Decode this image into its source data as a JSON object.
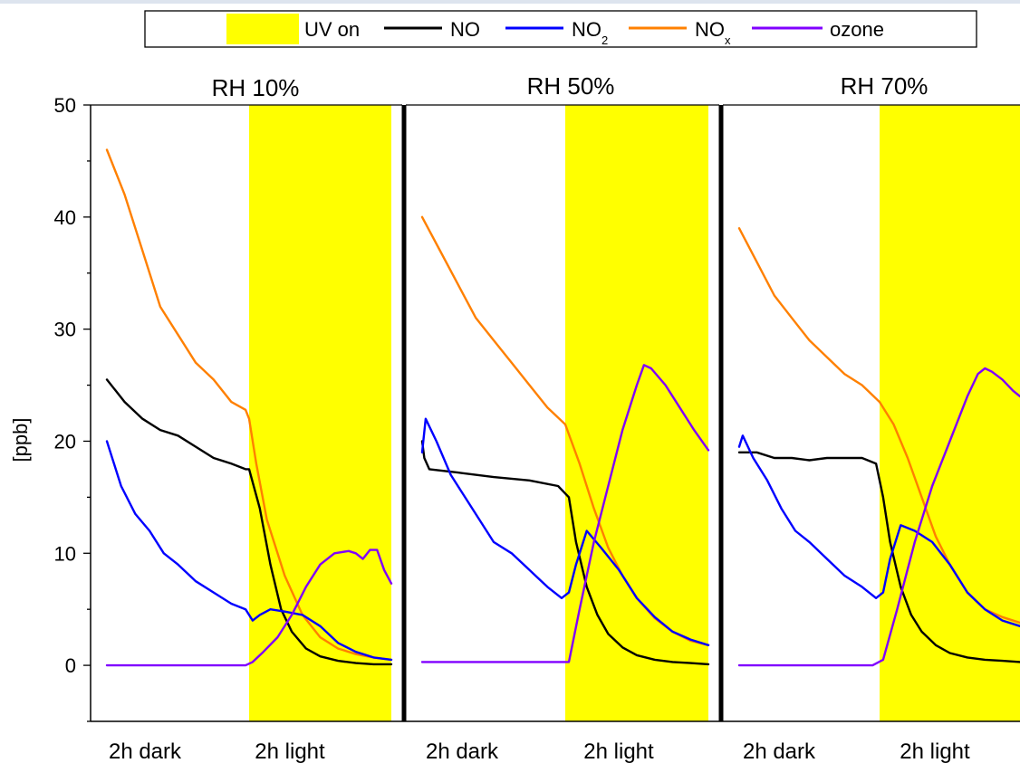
{
  "chart_data": {
    "type": "line",
    "ylabel": "[ppb]",
    "ylim": [
      -5,
      50
    ],
    "y_ticks": [
      0,
      10,
      20,
      30,
      40,
      50
    ],
    "grid": false,
    "legend_position": "top-center",
    "legend": [
      {
        "key": "uv",
        "label": "UV on",
        "kind": "patch",
        "color": "#ffff00"
      },
      {
        "key": "no",
        "label": "NO",
        "kind": "line",
        "color": "#000000"
      },
      {
        "key": "no2",
        "label": "NO",
        "sub": "2",
        "kind": "line",
        "color": "#0000ff"
      },
      {
        "key": "nox",
        "label": "NO",
        "sub": "x",
        "kind": "line",
        "color": "#ff8000"
      },
      {
        "key": "ozone",
        "label": "ozone",
        "kind": "line",
        "color": "#8000ff"
      }
    ],
    "x_unit": "h",
    "panels": [
      {
        "title": "RH 10%",
        "x_labels": [
          "2h dark",
          "2h light"
        ],
        "uv_on": [
          2,
          4
        ],
        "series": {
          "nox": {
            "x": [
              0.0,
              0.25,
              0.5,
              0.75,
              1.0,
              1.25,
              1.5,
              1.75,
              1.95,
              2.0,
              2.1,
              2.25,
              2.5,
              2.75,
              3.0,
              3.25,
              3.5,
              3.75,
              4.0
            ],
            "y": [
              46,
              42,
              37,
              32,
              29.5,
              27,
              25.5,
              23.5,
              22.8,
              22,
              18,
              13,
              8,
              4.5,
              2.5,
              1.5,
              1,
              0.7,
              0.5
            ]
          },
          "no": {
            "x": [
              0.0,
              0.25,
              0.5,
              0.75,
              1.0,
              1.25,
              1.5,
              1.75,
              1.95,
              2.0,
              2.15,
              2.3,
              2.45,
              2.6,
              2.8,
              3.0,
              3.25,
              3.5,
              3.75,
              4.0
            ],
            "y": [
              25.5,
              23.5,
              22,
              21,
              20.5,
              19.5,
              18.5,
              18,
              17.5,
              17.5,
              14,
              9,
              5,
              3,
              1.5,
              0.8,
              0.4,
              0.2,
              0.1,
              0.1
            ]
          },
          "no2": {
            "x": [
              0.0,
              0.2,
              0.4,
              0.6,
              0.8,
              1.0,
              1.25,
              1.5,
              1.75,
              1.95,
              2.05,
              2.15,
              2.3,
              2.5,
              2.75,
              3.0,
              3.25,
              3.5,
              3.75,
              4.0
            ],
            "y": [
              20,
              16,
              13.5,
              12,
              10,
              9,
              7.5,
              6.5,
              5.5,
              5,
              4,
              4.5,
              5,
              4.8,
              4.5,
              3.5,
              2,
              1.2,
              0.7,
              0.5
            ]
          },
          "ozone": {
            "x": [
              0.0,
              1.95,
              2.05,
              2.2,
              2.4,
              2.6,
              2.8,
              3.0,
              3.2,
              3.4,
              3.5,
              3.6,
              3.7,
              3.8,
              3.9,
              4.0
            ],
            "y": [
              0,
              0,
              0.3,
              1.2,
              2.5,
              4.5,
              7,
              9,
              10,
              10.2,
              10,
              9.5,
              10.3,
              10.3,
              8.5,
              7.3
            ]
          }
        }
      },
      {
        "title": "RH 50%",
        "x_labels": [
          "2h dark",
          "2h light"
        ],
        "uv_on": [
          2,
          4
        ],
        "series": {
          "nox": {
            "x": [
              0.0,
              0.25,
              0.5,
              0.75,
              1.0,
              1.25,
              1.5,
              1.75,
              2.0,
              2.2,
              2.4,
              2.6,
              2.8,
              3.0,
              3.25,
              3.5,
              3.75,
              4.0
            ],
            "y": [
              40,
              37,
              34,
              31,
              29,
              27,
              25,
              23,
              21.5,
              18,
              14,
              10.5,
              8,
              6,
              4.2,
              3,
              2.2,
              1.8
            ]
          },
          "no": {
            "x": [
              0.0,
              0.03,
              0.1,
              0.5,
              1.0,
              1.5,
              1.9,
              2.05,
              2.15,
              2.3,
              2.45,
              2.6,
              2.8,
              3.0,
              3.25,
              3.5,
              3.75,
              4.0
            ],
            "y": [
              20,
              18.5,
              17.5,
              17.2,
              16.8,
              16.5,
              16,
              15,
              11,
              7,
              4.5,
              2.8,
              1.6,
              0.9,
              0.5,
              0.3,
              0.2,
              0.1
            ]
          },
          "no2": {
            "x": [
              0.0,
              0.05,
              0.2,
              0.4,
              0.6,
              0.8,
              1.0,
              1.25,
              1.5,
              1.75,
              1.95,
              2.05,
              2.15,
              2.3,
              2.5,
              2.75,
              3.0,
              3.25,
              3.5,
              3.75,
              4.0
            ],
            "y": [
              19,
              22,
              20,
              17,
              15,
              13,
              11,
              10,
              8.5,
              7,
              6,
              6.5,
              9,
              12,
              10.5,
              8.5,
              6,
              4.3,
              3,
              2.3,
              1.8
            ]
          },
          "ozone": {
            "x": [
              0.0,
              2.05,
              2.2,
              2.4,
              2.6,
              2.8,
              3.0,
              3.1,
              3.2,
              3.4,
              3.6,
              3.8,
              4.0
            ],
            "y": [
              0.3,
              0.3,
              5,
              11,
              16,
              21,
              25,
              26.8,
              26.5,
              25,
              23,
              21,
              19.2
            ]
          }
        }
      },
      {
        "title": "RH 70%",
        "x_labels": [
          "2h dark",
          "2h light"
        ],
        "uv_on": [
          2,
          4
        ],
        "series": {
          "nox": {
            "x": [
              0.0,
              0.25,
              0.5,
              0.75,
              1.0,
              1.25,
              1.5,
              1.75,
              2.0,
              2.2,
              2.4,
              2.6,
              2.8,
              3.0,
              3.25,
              3.5,
              3.75,
              4.0
            ],
            "y": [
              39,
              36,
              33,
              31,
              29,
              27.5,
              26,
              25,
              23.5,
              21.5,
              18.5,
              15,
              11.5,
              9,
              6.5,
              5,
              4.3,
              3.8
            ]
          },
          "no": {
            "x": [
              0.0,
              0.25,
              0.5,
              0.75,
              1.0,
              1.25,
              1.5,
              1.75,
              1.95,
              2.05,
              2.15,
              2.3,
              2.45,
              2.6,
              2.8,
              3.0,
              3.25,
              3.5,
              3.75,
              4.0
            ],
            "y": [
              19,
              19,
              18.5,
              18.5,
              18.3,
              18.5,
              18.5,
              18.5,
              18,
              15,
              11,
              7,
              4.5,
              3,
              1.8,
              1.1,
              0.7,
              0.5,
              0.4,
              0.3
            ]
          },
          "no2": {
            "x": [
              0.0,
              0.05,
              0.2,
              0.4,
              0.6,
              0.8,
              1.0,
              1.25,
              1.5,
              1.75,
              1.95,
              2.05,
              2.15,
              2.3,
              2.5,
              2.75,
              3.0,
              3.25,
              3.5,
              3.75,
              4.0
            ],
            "y": [
              19.5,
              20.5,
              18.5,
              16.5,
              14,
              12,
              11,
              9.5,
              8,
              7,
              6,
              6.5,
              9.5,
              12.5,
              12,
              11,
              9,
              6.5,
              5,
              4,
              3.5
            ]
          },
          "ozone": {
            "x": [
              0.0,
              1.9,
              2.05,
              2.25,
              2.5,
              2.75,
              3.0,
              3.25,
              3.4,
              3.5,
              3.6,
              3.75,
              3.9,
              4.0
            ],
            "y": [
              0,
              0,
              0.5,
              5,
              11,
              16,
              20,
              24,
              26,
              26.5,
              26.2,
              25.5,
              24.5,
              24
            ]
          }
        }
      }
    ]
  }
}
